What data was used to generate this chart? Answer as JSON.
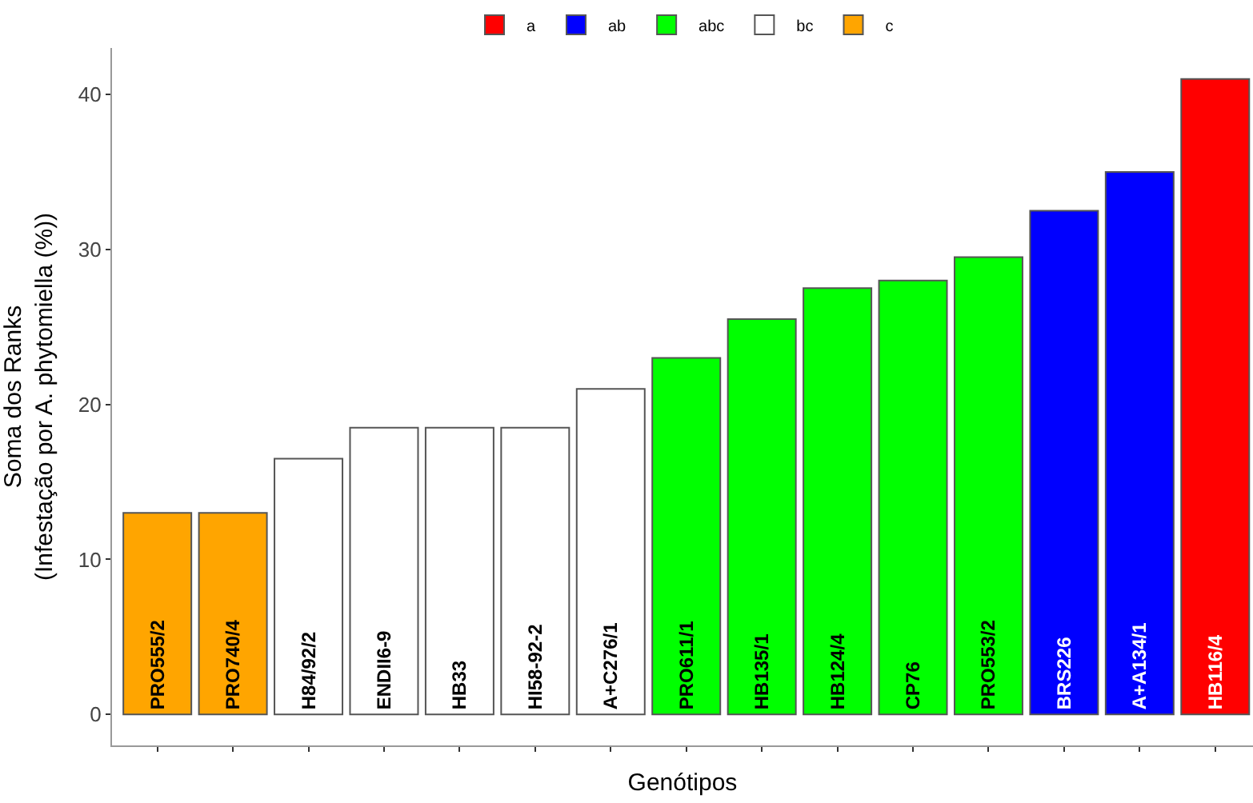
{
  "chart_data": {
    "type": "bar",
    "xlabel": "Genótipos",
    "ylabel": "Soma dos Ranks\n(Infestação por A. phytomiella (%))",
    "categories": [
      "PRO555/2",
      "PRO740/4",
      "H84/92/2",
      "ENDII6-9",
      "HB33",
      "HI58-92-2",
      "A+C276/1",
      "PRO611/1",
      "HB135/1",
      "HB124/4",
      "CP76",
      "PRO553/2",
      "BRS226",
      "A+A134/1",
      "HB116/4"
    ],
    "series": [
      {
        "name": "a",
        "color": "#ff0000",
        "values": [
          null,
          null,
          null,
          null,
          null,
          null,
          null,
          null,
          null,
          null,
          null,
          null,
          null,
          null,
          41
        ]
      },
      {
        "name": "ab",
        "color": "#0000ff",
        "values": [
          null,
          null,
          null,
          null,
          null,
          null,
          null,
          null,
          null,
          null,
          null,
          null,
          32.5,
          35,
          null
        ]
      },
      {
        "name": "abc",
        "color": "#00ff00",
        "values": [
          null,
          null,
          null,
          null,
          null,
          null,
          null,
          23,
          25.5,
          27.5,
          28,
          29.5,
          null,
          null,
          null
        ]
      },
      {
        "name": "bc",
        "color": "#ffffff",
        "values": [
          null,
          null,
          16.5,
          18.5,
          18.5,
          18.5,
          21,
          null,
          null,
          null,
          null,
          null,
          null,
          null,
          null
        ]
      },
      {
        "name": "c",
        "color": "#ffa500",
        "values": [
          13,
          13,
          null,
          null,
          null,
          null,
          null,
          null,
          null,
          null,
          null,
          null,
          null,
          null,
          null
        ]
      }
    ],
    "ylim": [
      -2,
      43
    ],
    "yticks": [
      0,
      10,
      20,
      30,
      40
    ],
    "legend": "top",
    "tick_labels": "y"
  }
}
